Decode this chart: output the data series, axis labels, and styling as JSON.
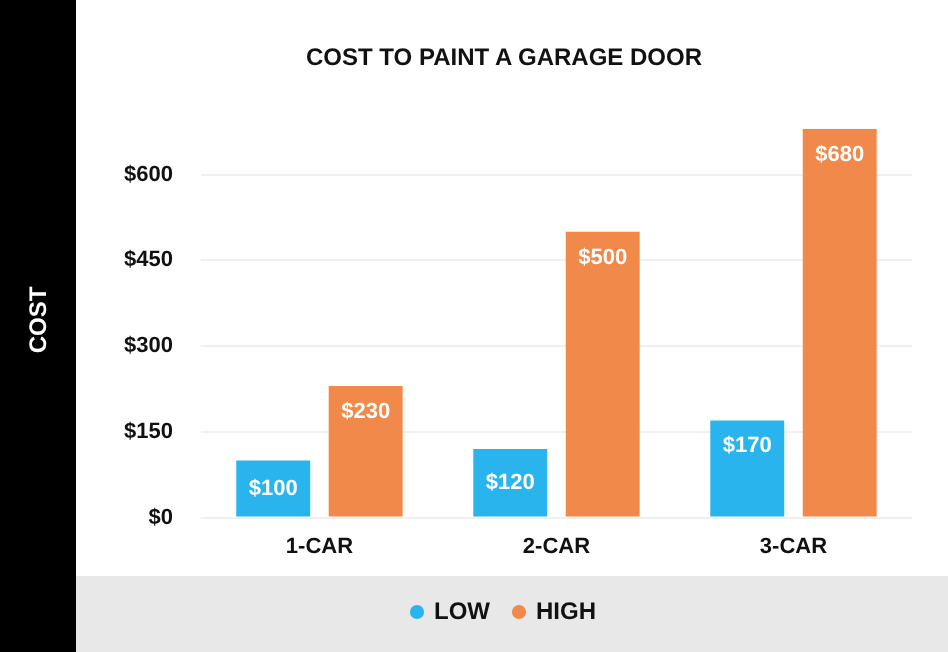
{
  "chart_data": {
    "type": "bar",
    "title": "COST TO PAINT A GARAGE DOOR",
    "ylabel": "COST",
    "categories": [
      "1-CAR",
      "2-CAR",
      "3-CAR"
    ],
    "series": [
      {
        "name": "LOW",
        "color": "#2ab4ee",
        "values": [
          100,
          120,
          170
        ]
      },
      {
        "name": "HIGH",
        "color": "#f0894a",
        "values": [
          230,
          500,
          680
        ]
      }
    ],
    "ylim": [
      0,
      680
    ],
    "yticks": [
      {
        "value": 0,
        "label": "$0"
      },
      {
        "value": 150,
        "label": "$150"
      },
      {
        "value": 300,
        "label": "$300"
      },
      {
        "value": 450,
        "label": "$450"
      },
      {
        "value": 600,
        "label": "$600"
      }
    ],
    "value_labels": [
      [
        "$100",
        "$120",
        "$170"
      ],
      [
        "$230",
        "$500",
        "$680"
      ]
    ],
    "grid": "y",
    "legend": "bottom"
  }
}
